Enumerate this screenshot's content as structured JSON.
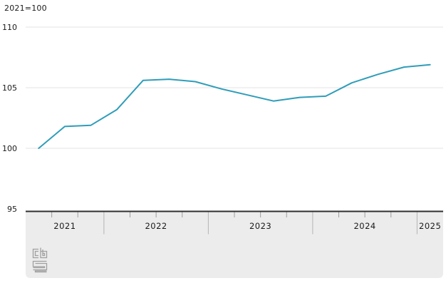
{
  "header": {
    "unit_label": "2021=100"
  },
  "chart_data": {
    "type": "line",
    "title": "",
    "unit": "2021=100",
    "x": [
      "2021 Q2",
      "2021 Q3",
      "2021 Q4",
      "2022 Q1",
      "2022 Q2",
      "2022 Q3",
      "2022 Q4",
      "2023 Q1",
      "2023 Q2",
      "2023 Q3",
      "2023 Q4",
      "2024 Q1",
      "2024 Q2",
      "2024 Q3",
      "2024 Q4",
      "2025 Q1"
    ],
    "values": [
      100.0,
      101.8,
      101.9,
      103.2,
      105.6,
      105.7,
      105.5,
      104.9,
      104.4,
      103.9,
      104.2,
      104.3,
      105.4,
      106.1,
      106.7,
      106.9
    ],
    "ylim": [
      95,
      110
    ],
    "yticks": [
      95,
      100,
      105,
      110
    ],
    "year_bands": [
      {
        "label": "2021",
        "quarters": 3
      },
      {
        "label": "2022",
        "quarters": 4
      },
      {
        "label": "2023",
        "quarters": 4
      },
      {
        "label": "2024",
        "quarters": 4
      },
      {
        "label": "2025",
        "quarters": 1
      }
    ],
    "grid": true,
    "legend": "none"
  },
  "colors": {
    "line": "#2f9db9",
    "grid": "#e3e3e3",
    "axis": "#2f2f2f",
    "band": "#ececec",
    "year_separator": "#b4b4b4",
    "quarter_tick": "#9e9e9e",
    "text": "#1a1a1a",
    "logo": "#a0a0a0"
  },
  "footer": {
    "logo": "cbs-logo"
  }
}
